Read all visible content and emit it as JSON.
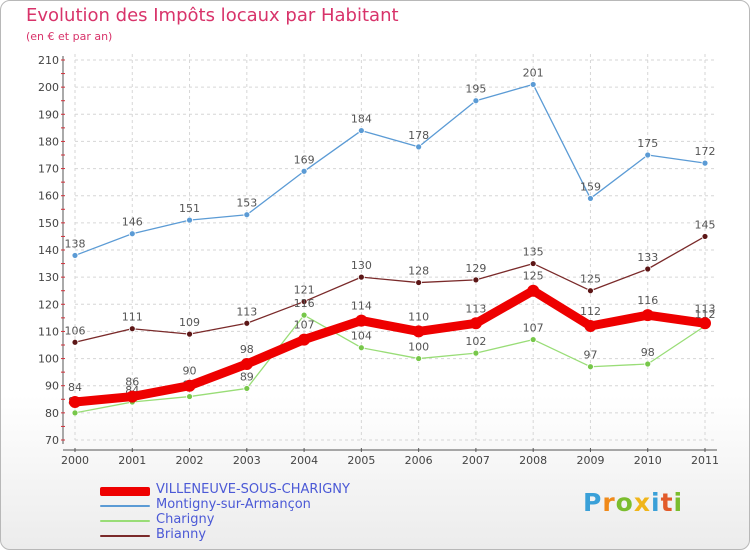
{
  "title": "Evolution des Impôts locaux par Habitant",
  "subtitle": "(en € et par an)",
  "logo_text": "Proxiti",
  "chart_data": {
    "type": "line",
    "x": [
      2000,
      2001,
      2002,
      2003,
      2004,
      2005,
      2006,
      2007,
      2008,
      2009,
      2010,
      2011
    ],
    "ylim": [
      70,
      210
    ],
    "yticks": [
      70,
      80,
      90,
      100,
      110,
      120,
      130,
      140,
      150,
      160,
      170,
      180,
      190,
      200,
      210
    ],
    "grid": true,
    "legend_position": "bottom-left",
    "series": [
      {
        "name": "Montigny-sur-Armançon",
        "color": "#5b9bd5",
        "marker": "#5b9bd5",
        "values": [
          138,
          146,
          151,
          153,
          169,
          184,
          178,
          195,
          201,
          159,
          175,
          172
        ]
      },
      {
        "name": "Brianny",
        "color": "#7a2a2a",
        "marker": "#5c1616",
        "values": [
          106,
          111,
          109,
          113,
          121,
          130,
          128,
          129,
          135,
          125,
          133,
          145
        ]
      },
      {
        "name": "Charigny",
        "color": "#99dd77",
        "marker": "#77c74a",
        "values": [
          80,
          84,
          86,
          89,
          116,
          104,
          100,
          102,
          107,
          97,
          98,
          112
        ]
      },
      {
        "name": "VILLENEUVE-SOUS-CHARIGNY",
        "color": "#ee0000",
        "marker": "#ee0000",
        "values": [
          84,
          86,
          90,
          98,
          107,
          114,
          110,
          113,
          125,
          112,
          116,
          113
        ]
      }
    ]
  }
}
